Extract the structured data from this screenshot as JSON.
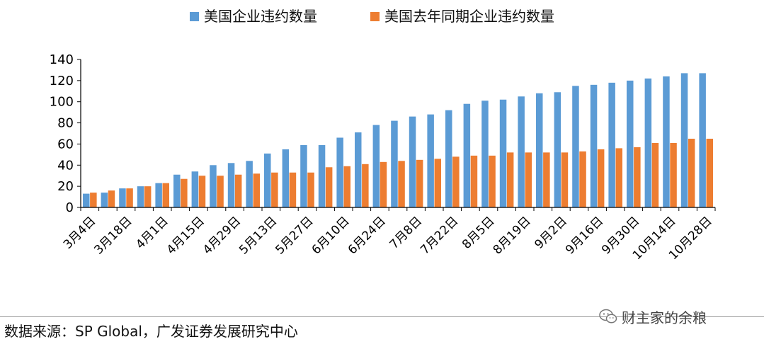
{
  "chart_data": {
    "type": "bar",
    "categories": [
      "3月4日",
      "",
      "3月18日",
      "",
      "4月1日",
      "",
      "4月15日",
      "",
      "4月29日",
      "",
      "5月13日",
      "",
      "5月27日",
      "",
      "6月10日",
      "",
      "6月24日",
      "",
      "7月8日",
      "",
      "7月22日",
      "",
      "8月5日",
      "",
      "8月19日",
      "",
      "9月2日",
      "",
      "9月16日",
      "",
      "9月30日",
      "",
      "10月14日",
      "",
      "10月28日"
    ],
    "series": [
      {
        "name": "美国企业违约数量",
        "color": "#5b9bd5",
        "values": [
          13,
          14,
          18,
          20,
          23,
          31,
          34,
          40,
          42,
          44,
          51,
          55,
          59,
          59,
          66,
          71,
          78,
          82,
          86,
          88,
          92,
          98,
          101,
          102,
          105,
          108,
          109,
          115,
          116,
          118,
          120,
          122,
          124,
          127,
          127
        ]
      },
      {
        "name": "美国去年同期企业违约数量",
        "color": "#ed7d31",
        "values": [
          14,
          16,
          18,
          20,
          23,
          27,
          30,
          30,
          31,
          32,
          33,
          33,
          33,
          38,
          39,
          41,
          43,
          44,
          45,
          46,
          48,
          49,
          49,
          52,
          52,
          52,
          52,
          53,
          55,
          56,
          57,
          61,
          61,
          65,
          65
        ]
      }
    ],
    "ylim": [
      0,
      140
    ],
    "yticks": [
      0,
      20,
      40,
      60,
      80,
      100,
      120,
      140
    ],
    "legend": "top",
    "grid": false
  },
  "footer": {
    "source": "数据来源：SP Global，广发证券发展研究中心",
    "watermark": "财主家的余粮"
  },
  "icons": {
    "watermark": "wechat-icon"
  }
}
